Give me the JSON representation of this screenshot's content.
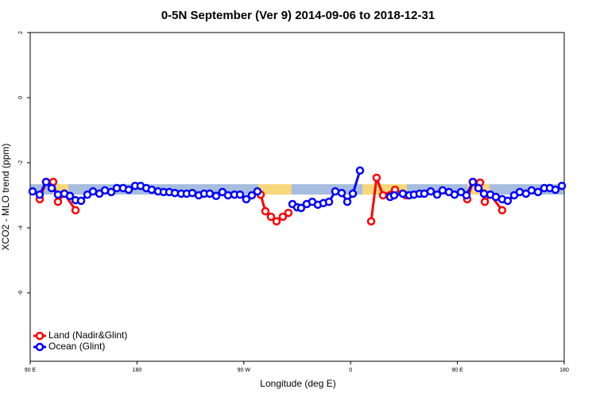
{
  "chart_data": {
    "type": "line",
    "title": "0-5N September (Ver 9)   2014-09-06 to 2018-12-31",
    "x_label": "Longitude (deg E)",
    "y_label": "XCO2 - MLO trend (ppm)",
    "xlim": [
      90,
      540
    ],
    "ylim": [
      -8.1,
      2
    ],
    "xticks": [
      {
        "value": 90,
        "label": "90 E"
      },
      180,
      {
        "value": 270,
        "label": "90 W"
      },
      {
        "value": 360,
        "label": "0"
      },
      {
        "value": 450,
        "label": "90 E"
      },
      {
        "value": 540,
        "label": "180"
      }
    ],
    "yticks": [
      2,
      0,
      -2,
      -4,
      -6
    ],
    "legend": "bottom-left",
    "series": [
      {
        "name": "Land (Nadir&Glint)",
        "color": "#ff0000",
        "x": [
          98,
          103.4,
          109.4,
          113.4,
          118.8,
          128.2,
          null,
          284.2,
          288.2,
          292.9,
          297.6,
          302.9,
          307.6,
          null,
          377.3,
          381.9,
          387.3,
          397.4,
          406.7,
          null,
          458.3,
          463,
          469.1,
          473.1,
          477.7,
          487.7
        ],
        "values": [
          -3.12,
          -2.59,
          -2.59,
          -3.2,
          -2.95,
          -3.46,
          null,
          -2.98,
          -3.49,
          -3.66,
          -3.8,
          -3.66,
          -3.54,
          null,
          -3.8,
          -2.46,
          -3.0,
          -2.83,
          -3.0,
          null,
          -3.12,
          -2.59,
          -2.61,
          -3.2,
          -2.98,
          -3.46
        ]
      },
      {
        "name": "Ocean (Glint)",
        "color": "#0000ff",
        "x": [
          92,
          98,
          103.4,
          108.1,
          113.4,
          118.8,
          123.5,
          128.2,
          132.9,
          138.2,
          142.9,
          148.3,
          153,
          158.3,
          163,
          168.3,
          173,
          178.4,
          183,
          187.8,
          192.4,
          197.8,
          202.5,
          207.2,
          211.9,
          217.2,
          221.9,
          226.6,
          232,
          236.6,
          241.3,
          246.7,
          252,
          256.7,
          262.1,
          266.8,
          272.1,
          276.8,
          281.5,
          null,
          311,
          315,
          318.3,
          323,
          327.7,
          332.4,
          337.1,
          341.8,
          347.1,
          352.5,
          357.2,
          361.9,
          367.9,
          null,
          393.3,
          396.7,
          404,
          409.4,
          413.4,
          418.1,
          422.1,
          427.5,
          432.9,
          437.5,
          442.9,
          447.6,
          453,
          457.6,
          463,
          467.7,
          472.4,
          477.7,
          482.4,
          487.7,
          492.4,
          497.8,
          502.5,
          507.8,
          512.5,
          517.9,
          523.2,
          527.9,
          532.6,
          538
        ],
        "values": [
          -2.88,
          -2.98,
          -2.59,
          -2.78,
          -2.98,
          -2.95,
          -3.02,
          -3.15,
          -3.17,
          -2.98,
          -2.88,
          -2.95,
          -2.85,
          -2.9,
          -2.78,
          -2.78,
          -2.83,
          -2.71,
          -2.71,
          -2.78,
          -2.83,
          -2.88,
          -2.9,
          -2.9,
          -2.93,
          -2.95,
          -2.95,
          -2.93,
          -3.0,
          -2.95,
          -2.95,
          -3.02,
          -2.9,
          -3.0,
          -2.98,
          -2.98,
          -3.12,
          -3.0,
          -2.88,
          null,
          -3.27,
          -3.37,
          -3.39,
          -3.27,
          -3.2,
          -3.29,
          -3.24,
          -3.2,
          -2.88,
          -2.93,
          -3.2,
          -2.95,
          -2.24,
          null,
          -3.05,
          -3.0,
          -2.95,
          -3.0,
          -2.98,
          -2.95,
          -2.95,
          -2.88,
          -2.98,
          -2.85,
          -2.9,
          -2.98,
          -2.9,
          -3.0,
          -2.59,
          -2.78,
          -2.95,
          -2.98,
          -3.05,
          -3.12,
          -3.17,
          -3.0,
          -2.9,
          -2.95,
          -2.85,
          -2.9,
          -2.78,
          -2.78,
          -2.83,
          -2.71
        ]
      }
    ]
  }
}
